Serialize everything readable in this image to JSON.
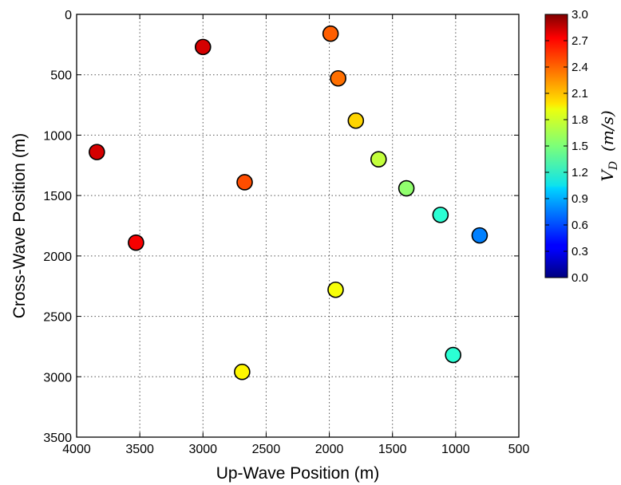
{
  "chart_data": {
    "type": "scatter",
    "xlabel": "Up-Wave Position (m)",
    "ylabel": "Cross-Wave Position (m)",
    "xlim": [
      4000,
      500
    ],
    "ylim": [
      3500,
      0
    ],
    "x_ticks": [
      "4000",
      "3500",
      "3000",
      "2500",
      "2000",
      "1500",
      "1000",
      "500"
    ],
    "y_ticks": [
      "0",
      "500",
      "1000",
      "1500",
      "2000",
      "2500",
      "3000",
      "3500"
    ],
    "grid": true,
    "points": [
      {
        "x": 3000,
        "y": 270,
        "v": 2.75
      },
      {
        "x": 1990,
        "y": 160,
        "v": 2.35
      },
      {
        "x": 1930,
        "y": 530,
        "v": 2.3
      },
      {
        "x": 1790,
        "y": 880,
        "v": 2.0
      },
      {
        "x": 3840,
        "y": 1140,
        "v": 2.75
      },
      {
        "x": 1610,
        "y": 1200,
        "v": 1.7
      },
      {
        "x": 2670,
        "y": 1390,
        "v": 2.4
      },
      {
        "x": 1390,
        "y": 1440,
        "v": 1.55
      },
      {
        "x": 1120,
        "y": 1660,
        "v": 1.25
      },
      {
        "x": 810,
        "y": 1830,
        "v": 0.75
      },
      {
        "x": 3530,
        "y": 1890,
        "v": 2.65
      },
      {
        "x": 1950,
        "y": 2280,
        "v": 1.85
      },
      {
        "x": 1020,
        "y": 2820,
        "v": 1.25
      },
      {
        "x": 2690,
        "y": 2960,
        "v": 1.9
      }
    ],
    "colorbar": {
      "title_base": "V",
      "title_sub": "D",
      "title_units": "(m/s)",
      "range": [
        0.0,
        3.0
      ],
      "ticks": [
        "3.0",
        "2.7",
        "2.4",
        "2.1",
        "1.8",
        "1.5",
        "1.2",
        "0.9",
        "0.6",
        "0.3",
        "0.0"
      ],
      "colormap": "jet"
    }
  }
}
